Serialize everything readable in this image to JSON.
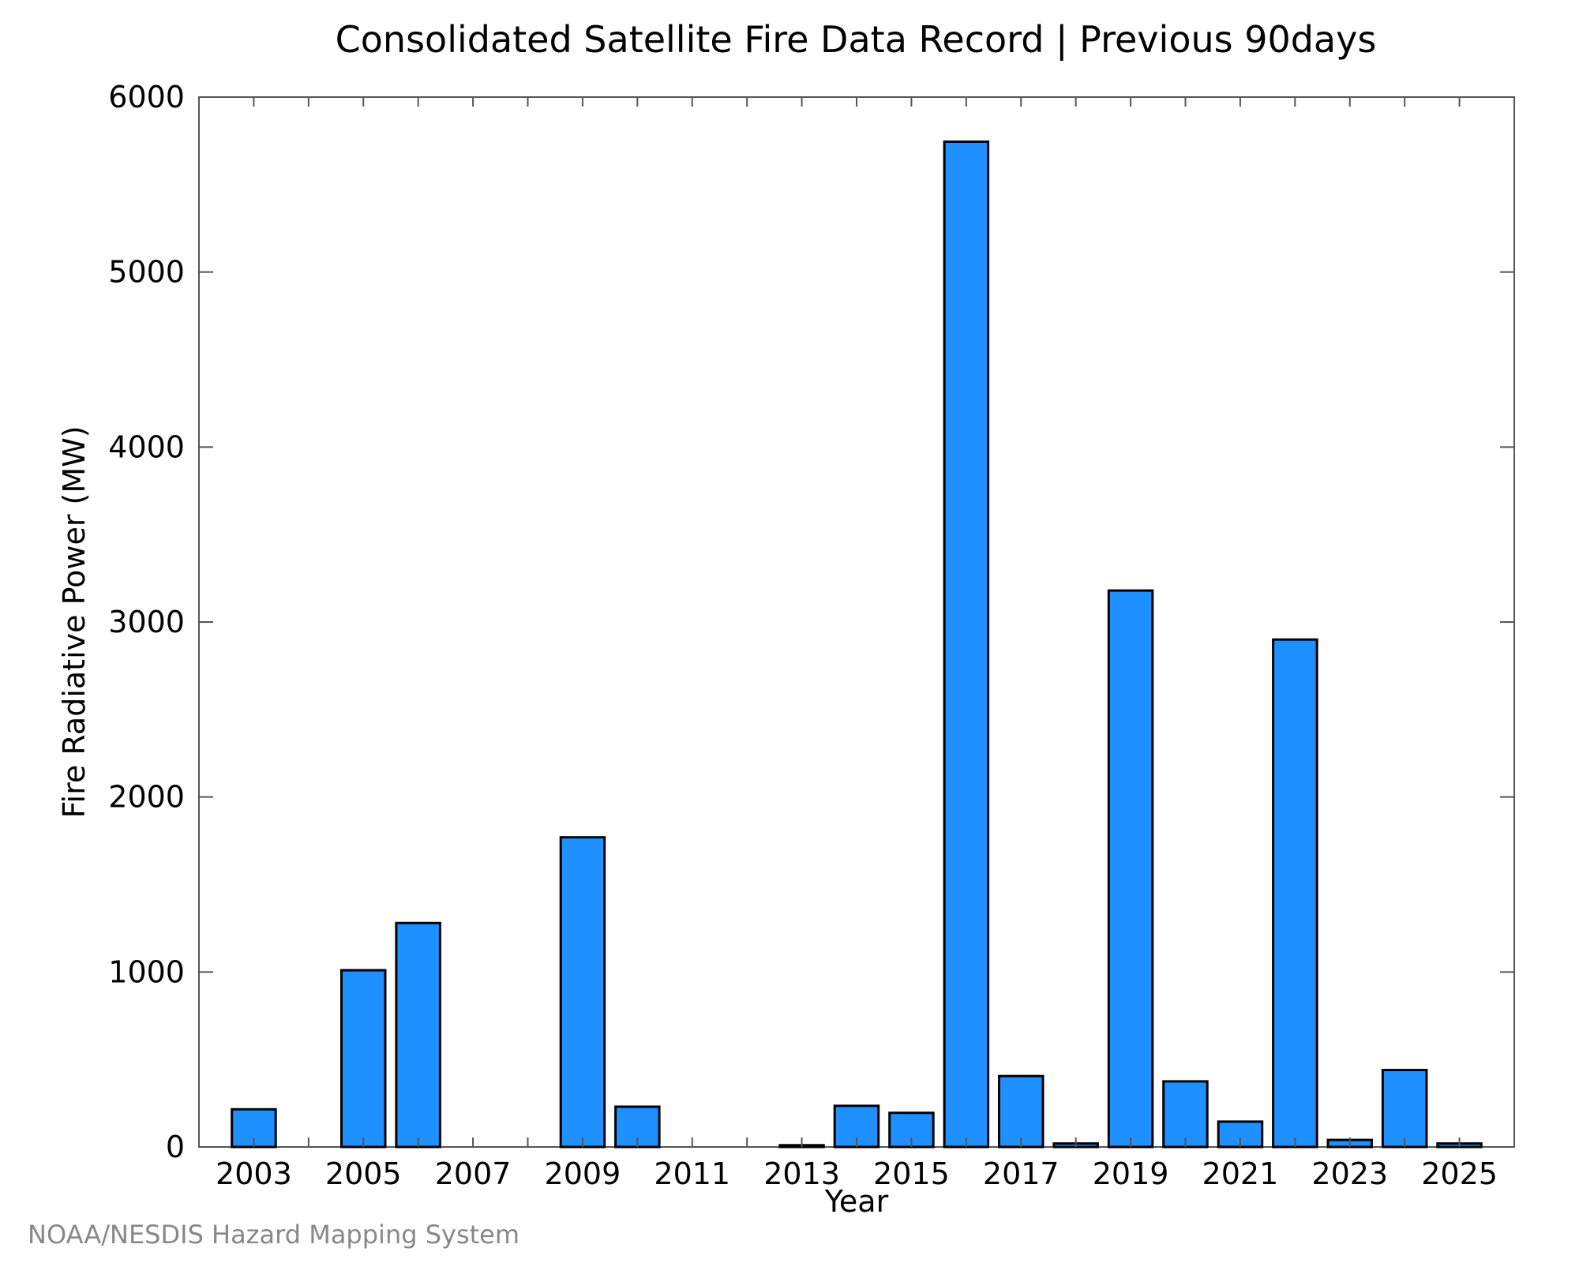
{
  "chart_data": {
    "type": "bar",
    "title": "Consolidated Satellite Fire Data Record | Previous 90days",
    "xlabel": "Year",
    "ylabel": "Fire Radiative Power (MW)",
    "ylim": [
      0,
      6000
    ],
    "yticks": [
      "0",
      "1000",
      "2000",
      "3000",
      "4000",
      "5000",
      "6000"
    ],
    "xticks": [
      "2003",
      "2005",
      "2007",
      "2009",
      "2011",
      "2013",
      "2015",
      "2017",
      "2019",
      "2021",
      "2023",
      "2025"
    ],
    "categories": [
      "2003",
      "2004",
      "2005",
      "2006",
      "2007",
      "2008",
      "2009",
      "2010",
      "2011",
      "2012",
      "2013",
      "2014",
      "2015",
      "2016",
      "2017",
      "2018",
      "2019",
      "2020",
      "2021",
      "2022",
      "2023",
      "2024",
      "2025"
    ],
    "values": [
      215,
      0,
      1010,
      1280,
      0,
      0,
      1770,
      230,
      0,
      0,
      10,
      235,
      195,
      5745,
      405,
      20,
      3180,
      375,
      145,
      2900,
      40,
      440,
      20
    ],
    "bar_color": "#1e90ff",
    "grid": false,
    "credit": "NOAA/NESDIS Hazard Mapping System"
  }
}
